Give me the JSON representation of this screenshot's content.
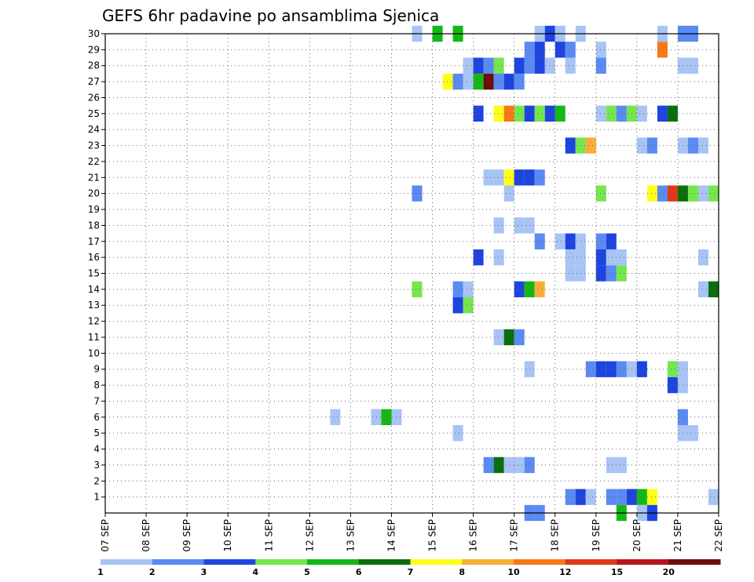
{
  "chart_data": {
    "type": "heatmap",
    "title": "GEFS 6hr padavine po ansamblima Sjenica",
    "xlabel": "",
    "ylabel": "",
    "x_tick_labels": [
      "07 SEP",
      "08 SEP",
      "09 SEP",
      "10 SEP",
      "11 SEP",
      "12 SEP",
      "13 SEP",
      "14 SEP",
      "15 SEP",
      "16 SEP",
      "17 SEP",
      "18 SEP",
      "19 SEP",
      "20 SEP",
      "21 SEP",
      "22 SEP"
    ],
    "y_tick_labels": [
      "1",
      "2",
      "3",
      "4",
      "5",
      "6",
      "7",
      "8",
      "9",
      "10",
      "11",
      "12",
      "13",
      "14",
      "15",
      "16",
      "17",
      "18",
      "19",
      "20",
      "21",
      "22",
      "23",
      "24",
      "25",
      "26",
      "27",
      "28",
      "29",
      "30"
    ],
    "x_range_days": [
      0,
      15
    ],
    "y_range": [
      0,
      30
    ],
    "grid": true,
    "colorbar": {
      "labels": [
        "1",
        "2",
        "3",
        "4",
        "5",
        "6",
        "7",
        "8",
        "10",
        "12",
        "15",
        "20"
      ],
      "colors": [
        "#a8c4f5",
        "#5a8af2",
        "#1e44df",
        "#76e64f",
        "#14b814",
        "#0a6e0a",
        "#ffff19",
        "#f9ae38",
        "#f87818",
        "#e0391a",
        "#b8141c",
        "#6e0c0c"
      ]
    },
    "cells": [
      [
        7.75,
        30,
        1
      ],
      [
        8.25,
        30,
        5
      ],
      [
        8.75,
        30,
        5
      ],
      [
        10.75,
        30,
        1
      ],
      [
        11,
        30,
        3
      ],
      [
        11.25,
        30,
        1
      ],
      [
        11.75,
        30,
        1
      ],
      [
        13.75,
        30,
        1
      ],
      [
        14.25,
        30,
        2
      ],
      [
        14.5,
        30,
        2
      ],
      [
        10.5,
        29,
        2
      ],
      [
        10.75,
        29,
        3
      ],
      [
        11.25,
        29,
        3
      ],
      [
        11.5,
        29,
        2
      ],
      [
        12.25,
        29,
        1
      ],
      [
        13.75,
        29,
        10
      ],
      [
        9,
        28,
        1
      ],
      [
        9.25,
        28,
        3
      ],
      [
        9.5,
        28,
        2
      ],
      [
        9.75,
        28,
        4
      ],
      [
        10.25,
        28,
        3
      ],
      [
        10.5,
        28,
        2
      ],
      [
        10.75,
        28,
        3
      ],
      [
        11,
        28,
        1
      ],
      [
        11.5,
        28,
        1
      ],
      [
        12.25,
        28,
        2
      ],
      [
        14.25,
        28,
        1
      ],
      [
        14.5,
        28,
        1
      ],
      [
        8.5,
        27,
        7
      ],
      [
        8.75,
        27,
        2
      ],
      [
        9,
        27,
        1
      ],
      [
        9.25,
        27,
        5
      ],
      [
        9.5,
        27,
        20
      ],
      [
        9.75,
        27,
        2
      ],
      [
        10,
        27,
        3
      ],
      [
        10.25,
        27,
        2
      ],
      [
        9.25,
        25,
        3
      ],
      [
        9.75,
        25,
        7
      ],
      [
        10,
        25,
        10
      ],
      [
        10.25,
        25,
        4
      ],
      [
        10.5,
        25,
        3
      ],
      [
        10.75,
        25,
        4
      ],
      [
        11,
        25,
        3
      ],
      [
        11.25,
        25,
        5
      ],
      [
        12.25,
        25,
        1
      ],
      [
        12.5,
        25,
        4
      ],
      [
        12.75,
        25,
        2
      ],
      [
        13,
        25,
        4
      ],
      [
        13.25,
        25,
        1
      ],
      [
        13.75,
        25,
        3
      ],
      [
        14,
        25,
        6
      ],
      [
        11.5,
        23,
        3
      ],
      [
        11.75,
        23,
        4
      ],
      [
        12,
        23,
        8
      ],
      [
        13.25,
        23,
        1
      ],
      [
        13.5,
        23,
        2
      ],
      [
        14.25,
        23,
        1
      ],
      [
        14.5,
        23,
        2
      ],
      [
        14.75,
        23,
        1
      ],
      [
        9.5,
        21,
        1
      ],
      [
        9.75,
        21,
        1
      ],
      [
        10,
        21,
        7
      ],
      [
        10.25,
        21,
        3
      ],
      [
        10.5,
        21,
        3
      ],
      [
        10.75,
        21,
        2
      ],
      [
        7.75,
        20,
        2
      ],
      [
        10,
        20,
        1
      ],
      [
        12.25,
        20,
        4
      ],
      [
        13.5,
        20,
        7
      ],
      [
        13.75,
        20,
        2
      ],
      [
        14,
        20,
        12
      ],
      [
        14.25,
        20,
        6
      ],
      [
        14.5,
        20,
        4
      ],
      [
        14.75,
        20,
        1
      ],
      [
        15,
        20,
        4
      ],
      [
        9.75,
        18,
        1
      ],
      [
        10.25,
        18,
        1
      ],
      [
        10.5,
        18,
        1
      ],
      [
        10.75,
        17,
        2
      ],
      [
        11.25,
        17,
        1
      ],
      [
        11.5,
        17,
        3
      ],
      [
        11.75,
        17,
        1
      ],
      [
        12.25,
        17,
        2
      ],
      [
        12.5,
        17,
        3
      ],
      [
        9.25,
        16,
        3
      ],
      [
        9.75,
        16,
        1
      ],
      [
        11.5,
        16,
        1
      ],
      [
        11.75,
        16,
        1
      ],
      [
        12.25,
        16,
        3
      ],
      [
        12.5,
        16,
        1
      ],
      [
        12.75,
        16,
        1
      ],
      [
        14.75,
        16,
        1
      ],
      [
        11.5,
        15,
        1
      ],
      [
        11.75,
        15,
        1
      ],
      [
        12.25,
        15,
        3
      ],
      [
        12.5,
        15,
        2
      ],
      [
        12.75,
        15,
        4
      ],
      [
        7.75,
        14,
        4
      ],
      [
        8.75,
        14,
        2
      ],
      [
        9,
        14,
        1
      ],
      [
        10.25,
        14,
        3
      ],
      [
        10.5,
        14,
        5
      ],
      [
        10.75,
        14,
        8
      ],
      [
        14.75,
        14,
        1
      ],
      [
        15,
        14,
        6
      ],
      [
        8.75,
        13,
        3
      ],
      [
        9,
        13,
        4
      ],
      [
        9.75,
        11,
        1
      ],
      [
        10,
        11,
        6
      ],
      [
        10.25,
        11,
        2
      ],
      [
        10.5,
        9,
        1
      ],
      [
        12,
        9,
        2
      ],
      [
        12.25,
        9,
        3
      ],
      [
        12.5,
        9,
        3
      ],
      [
        12.75,
        9,
        2
      ],
      [
        13,
        9,
        1
      ],
      [
        13.25,
        9,
        3
      ],
      [
        14,
        9,
        4
      ],
      [
        14.25,
        9,
        1
      ],
      [
        14,
        8,
        3
      ],
      [
        14.25,
        8,
        1
      ],
      [
        5.75,
        6,
        1
      ],
      [
        6.75,
        6,
        1
      ],
      [
        7,
        6,
        5
      ],
      [
        7.25,
        6,
        1
      ],
      [
        14.25,
        6,
        2
      ],
      [
        8.75,
        5,
        1
      ],
      [
        14.25,
        5,
        1
      ],
      [
        14.5,
        5,
        1
      ],
      [
        9.5,
        3,
        2
      ],
      [
        9.75,
        3,
        6
      ],
      [
        10,
        3,
        1
      ],
      [
        10.25,
        3,
        1
      ],
      [
        10.5,
        3,
        2
      ],
      [
        12.5,
        3,
        1
      ],
      [
        12.75,
        3,
        1
      ],
      [
        11.5,
        1,
        2
      ],
      [
        11.75,
        1,
        3
      ],
      [
        12,
        1,
        1
      ],
      [
        12.5,
        1,
        2
      ],
      [
        12.75,
        1,
        2
      ],
      [
        13,
        1,
        3
      ],
      [
        13.25,
        1,
        5
      ],
      [
        13.5,
        1,
        7
      ],
      [
        15,
        1,
        1
      ],
      [
        10.5,
        0,
        2
      ],
      [
        10.75,
        0,
        2
      ],
      [
        12.75,
        0,
        5
      ],
      [
        13.25,
        0,
        1
      ],
      [
        13.5,
        0,
        3
      ]
    ]
  }
}
